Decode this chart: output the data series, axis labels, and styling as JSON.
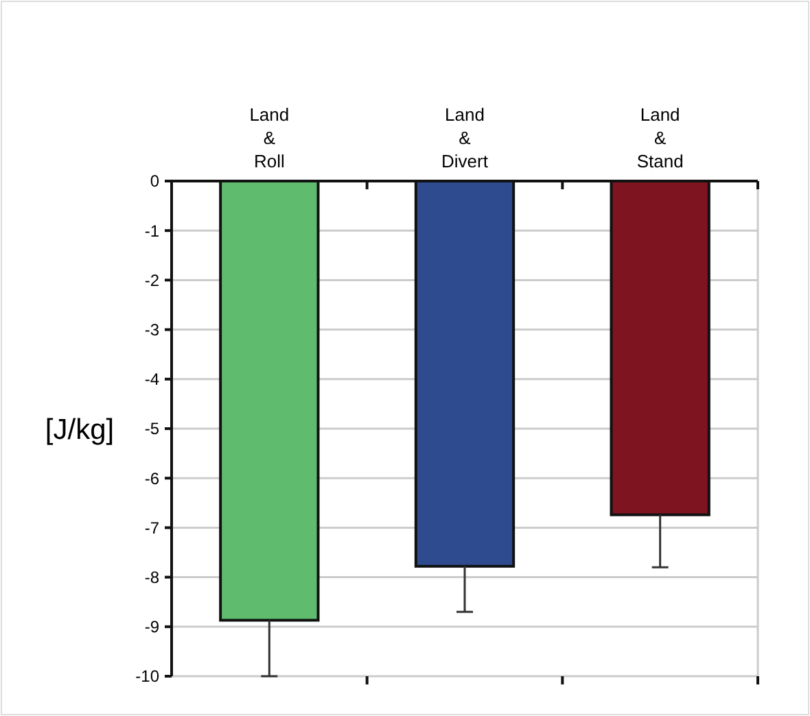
{
  "chart_data": {
    "type": "bar",
    "ylabel": "[J/kg]",
    "categories": [
      "Land\n&\nRoll",
      "Land\n&\nDivert",
      "Land\n&\nStand"
    ],
    "values": [
      -8.87,
      -7.78,
      -6.74
    ],
    "colors": [
      "#5fbb6d",
      "#2e4b8f",
      "#7e1420"
    ],
    "errors": [
      [
        -10.0,
        -8.87
      ],
      [
        -8.7,
        -7.78
      ],
      [
        -7.8,
        -6.74
      ]
    ],
    "ylim": [
      -10,
      0
    ],
    "yticks": [
      0,
      -1,
      -2,
      -3,
      -4,
      -5,
      -6,
      -7,
      -8,
      -9,
      -10
    ],
    "grid": "y"
  }
}
